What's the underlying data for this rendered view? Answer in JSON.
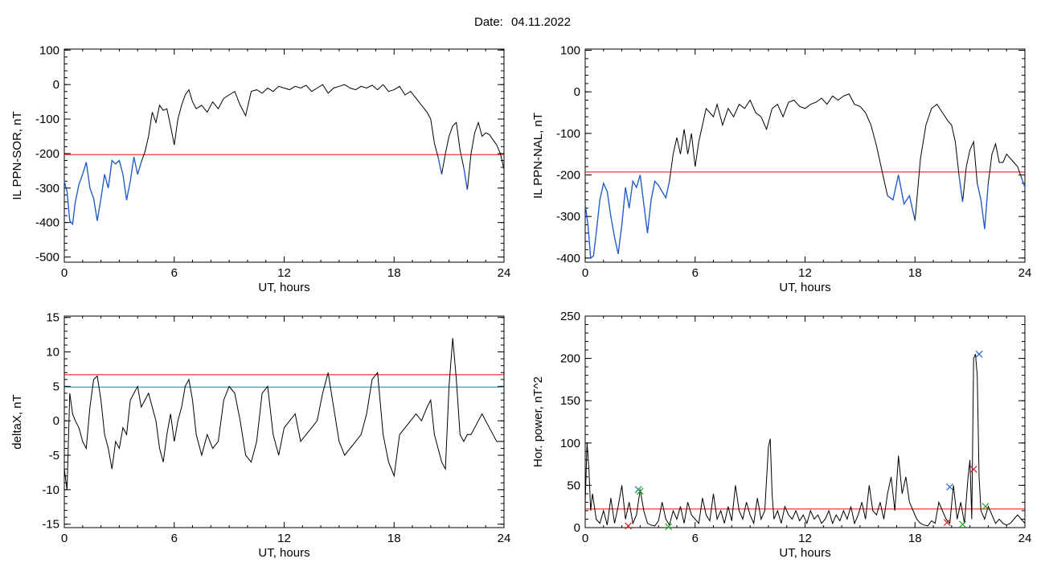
{
  "header": {
    "date_label": "Date:",
    "date_value": "04.11.2022"
  },
  "chart_data": [
    {
      "type": "line",
      "xlabel": "UT, hours",
      "ylabel": "IL PPN-SOR, nT",
      "xlim": [
        0,
        24
      ],
      "ylim": [
        -515,
        103
      ],
      "x_ticks": [
        0,
        6,
        12,
        18,
        24
      ],
      "y_ticks": [
        100,
        0,
        -100,
        -200,
        -300,
        -400,
        -500
      ],
      "threshold": {
        "value": -203,
        "color": "#ff0000"
      },
      "line_color": "#000000",
      "highlight_color": "#1f5fd0",
      "series": [
        {
          "x": [
            0,
            0.15,
            0.3,
            0.45,
            0.6,
            0.8,
            1.0,
            1.2,
            1.4,
            1.6,
            1.8,
            2.0,
            2.2,
            2.4,
            2.6,
            2.8,
            3.0,
            3.2,
            3.4,
            3.6,
            3.8,
            4.0,
            4.2,
            4.4,
            4.6,
            4.8,
            5.0,
            5.2,
            5.4,
            5.6,
            5.8,
            6.0,
            6.2,
            6.4,
            6.6,
            6.8,
            7.0,
            7.2,
            7.5,
            7.8,
            8.1,
            8.4,
            8.7,
            9.0,
            9.3,
            9.6,
            9.9,
            10.2,
            10.5,
            10.8,
            11.1,
            11.4,
            11.7,
            12.0,
            12.3,
            12.6,
            12.9,
            13.2,
            13.5,
            13.8,
            14.1,
            14.4,
            14.7,
            15.0,
            15.3,
            15.6,
            15.9,
            16.2,
            16.5,
            16.8,
            17.1,
            17.4,
            17.7,
            18.0,
            18.3,
            18.6,
            18.9,
            19.2,
            19.5,
            19.8,
            20.0,
            20.2,
            20.4,
            20.6,
            20.8,
            21.0,
            21.2,
            21.4,
            21.6,
            21.8,
            22.0,
            22.2,
            22.4,
            22.6,
            22.8,
            23.0,
            23.2,
            23.4,
            23.6,
            23.8,
            24.0
          ],
          "y": [
            -280,
            -310,
            -395,
            -405,
            -340,
            -290,
            -260,
            -225,
            -300,
            -330,
            -395,
            -330,
            -260,
            -300,
            -220,
            -230,
            -220,
            -260,
            -335,
            -280,
            -210,
            -260,
            -225,
            -195,
            -150,
            -80,
            -110,
            -60,
            -75,
            -70,
            -120,
            -175,
            -100,
            -60,
            -30,
            -15,
            -50,
            -70,
            -60,
            -80,
            -50,
            -70,
            -40,
            -30,
            -20,
            -60,
            -90,
            -20,
            -15,
            -25,
            -10,
            -20,
            -5,
            -10,
            -15,
            -5,
            -10,
            -2,
            -20,
            -10,
            0,
            -25,
            -10,
            -5,
            0,
            -10,
            -15,
            -5,
            -10,
            -2,
            -15,
            0,
            -20,
            -15,
            -5,
            -30,
            -20,
            -40,
            -60,
            -80,
            -100,
            -170,
            -210,
            -260,
            -200,
            -150,
            -120,
            -110,
            -190,
            -240,
            -305,
            -200,
            -140,
            -110,
            -150,
            -140,
            -145,
            -160,
            -175,
            -200,
            -245
          ]
        }
      ]
    },
    {
      "type": "line",
      "xlabel": "UT, hours",
      "ylabel": "IL PPN-NAL, nT",
      "xlim": [
        0,
        24
      ],
      "ylim": [
        -410,
        103
      ],
      "x_ticks": [
        0,
        6,
        12,
        18,
        24
      ],
      "y_ticks": [
        100,
        0,
        -100,
        -200,
        -300,
        -400
      ],
      "threshold": {
        "value": -193,
        "color": "#ff0000"
      },
      "line_color": "#000000",
      "highlight_color": "#1f5fd0",
      "series": [
        {
          "x": [
            0,
            0.15,
            0.3,
            0.45,
            0.6,
            0.8,
            1.0,
            1.2,
            1.4,
            1.6,
            1.8,
            2.0,
            2.2,
            2.4,
            2.6,
            2.8,
            3.0,
            3.2,
            3.4,
            3.6,
            3.8,
            4.0,
            4.2,
            4.4,
            4.6,
            4.8,
            5.0,
            5.2,
            5.4,
            5.6,
            5.8,
            6.0,
            6.2,
            6.4,
            6.6,
            6.8,
            7.0,
            7.2,
            7.5,
            7.8,
            8.1,
            8.4,
            8.7,
            9.0,
            9.3,
            9.6,
            9.9,
            10.2,
            10.5,
            10.8,
            11.1,
            11.4,
            11.7,
            12.0,
            12.3,
            12.6,
            12.9,
            13.2,
            13.5,
            13.8,
            14.1,
            14.4,
            14.7,
            15.0,
            15.3,
            15.6,
            15.9,
            16.2,
            16.5,
            16.8,
            17.1,
            17.4,
            17.7,
            18.0,
            18.3,
            18.6,
            18.9,
            19.2,
            19.5,
            19.8,
            20.0,
            20.2,
            20.4,
            20.6,
            20.8,
            21.0,
            21.2,
            21.4,
            21.6,
            21.8,
            22.0,
            22.2,
            22.4,
            22.6,
            22.8,
            23.0,
            23.2,
            23.4,
            23.6,
            23.8,
            24.0
          ],
          "y": [
            -270,
            -320,
            -400,
            -395,
            -340,
            -260,
            -220,
            -240,
            -300,
            -350,
            -390,
            -320,
            -230,
            -280,
            -215,
            -230,
            -200,
            -270,
            -340,
            -260,
            -215,
            -225,
            -240,
            -255,
            -215,
            -150,
            -110,
            -150,
            -90,
            -150,
            -100,
            -180,
            -120,
            -80,
            -40,
            -50,
            -60,
            -30,
            -80,
            -40,
            -60,
            -30,
            -40,
            -20,
            -50,
            -60,
            -90,
            -40,
            -30,
            -60,
            -25,
            -20,
            -35,
            -40,
            -30,
            -25,
            -15,
            -30,
            -10,
            -20,
            -10,
            -5,
            -30,
            -35,
            -50,
            -80,
            -130,
            -190,
            -250,
            -260,
            -200,
            -270,
            -250,
            -310,
            -160,
            -80,
            -40,
            -30,
            -50,
            -70,
            -80,
            -120,
            -200,
            -265,
            -180,
            -140,
            -120,
            -220,
            -260,
            -330,
            -220,
            -150,
            -125,
            -170,
            -170,
            -150,
            -160,
            -170,
            -180,
            -205,
            -230
          ]
        }
      ]
    },
    {
      "type": "line",
      "xlabel": "UT, hours",
      "ylabel": "deltaX, nT",
      "xlim": [
        0,
        24
      ],
      "ylim": [
        -15.5,
        15.2
      ],
      "x_ticks": [
        0,
        6,
        12,
        18,
        24
      ],
      "y_ticks": [
        15,
        10,
        5,
        0,
        -5,
        -10,
        -15
      ],
      "thresholds": [
        {
          "value": 6.7,
          "color": "#ff0000"
        },
        {
          "value": 4.9,
          "color": "#1a7f9c"
        }
      ],
      "line_color": "#000000",
      "series": [
        {
          "x": [
            0,
            0.15,
            0.3,
            0.45,
            0.6,
            0.8,
            1.0,
            1.2,
            1.4,
            1.6,
            1.8,
            2.0,
            2.2,
            2.4,
            2.6,
            2.8,
            3.0,
            3.2,
            3.4,
            3.6,
            3.8,
            4.0,
            4.2,
            4.4,
            4.6,
            4.8,
            5.0,
            5.2,
            5.4,
            5.6,
            5.8,
            6.0,
            6.2,
            6.4,
            6.6,
            6.8,
            7.0,
            7.2,
            7.5,
            7.8,
            8.1,
            8.4,
            8.7,
            9.0,
            9.3,
            9.6,
            9.9,
            10.2,
            10.5,
            10.8,
            11.1,
            11.4,
            11.7,
            12.0,
            12.3,
            12.6,
            12.9,
            13.2,
            13.5,
            13.8,
            14.1,
            14.4,
            14.7,
            15.0,
            15.3,
            15.6,
            15.9,
            16.2,
            16.5,
            16.8,
            17.1,
            17.4,
            17.7,
            18.0,
            18.3,
            18.6,
            18.9,
            19.2,
            19.5,
            19.8,
            20.0,
            20.2,
            20.4,
            20.6,
            20.8,
            21.0,
            21.2,
            21.4,
            21.6,
            21.8,
            22.0,
            22.2,
            22.4,
            22.6,
            22.8,
            23.0,
            23.2,
            23.4,
            23.6,
            23.8,
            24.0
          ],
          "y": [
            -7,
            -10,
            4,
            1,
            0,
            -1,
            -3,
            -4,
            2,
            6,
            6.5,
            3,
            -2,
            -4,
            -7,
            -3,
            -4,
            -1,
            -2,
            3,
            4,
            5,
            2,
            3,
            4,
            2,
            0,
            -4,
            -6,
            -2,
            1,
            -3,
            0,
            2,
            5,
            6,
            3,
            -2,
            -5,
            -2,
            -4,
            -3,
            3,
            5,
            4,
            0,
            -5,
            -6,
            -3,
            4,
            5,
            -2,
            -5,
            -1,
            0,
            1,
            -3,
            -2,
            -1,
            0,
            4,
            7,
            2,
            -3,
            -5,
            -4,
            -3,
            -2,
            1,
            6,
            7,
            -2,
            -6,
            -8,
            -2,
            -1,
            0,
            1,
            0,
            2,
            3,
            -2,
            -4,
            -6,
            -7,
            5,
            12,
            6,
            -2,
            -3,
            -2,
            -2,
            -1,
            0,
            1,
            0,
            -1,
            -2,
            -3,
            -3,
            -3
          ]
        }
      ]
    },
    {
      "type": "line",
      "xlabel": "UT, hours",
      "ylabel": "Hor. power, nT^2",
      "xlim": [
        0,
        24
      ],
      "ylim": [
        0,
        250
      ],
      "x_ticks": [
        0,
        6,
        12,
        18,
        24
      ],
      "y_ticks": [
        250,
        200,
        150,
        100,
        50,
        0
      ],
      "threshold": {
        "value": 22,
        "color": "#ff0000"
      },
      "line_color": "#000000",
      "series": [
        {
          "x": [
            0,
            0.1,
            0.2,
            0.3,
            0.4,
            0.6,
            0.8,
            1.0,
            1.2,
            1.4,
            1.6,
            1.8,
            2.0,
            2.2,
            2.4,
            2.6,
            2.8,
            3.0,
            3.2,
            3.4,
            3.6,
            3.8,
            4.0,
            4.2,
            4.4,
            4.6,
            4.8,
            5.0,
            5.2,
            5.4,
            5.6,
            5.8,
            6.0,
            6.2,
            6.4,
            6.6,
            6.8,
            7.0,
            7.2,
            7.4,
            7.6,
            7.8,
            8.0,
            8.2,
            8.4,
            8.6,
            8.8,
            9.0,
            9.2,
            9.4,
            9.6,
            9.8,
            10.0,
            10.1,
            10.2,
            10.3,
            10.5,
            10.7,
            10.9,
            11.1,
            11.3,
            11.5,
            11.7,
            11.9,
            12.1,
            12.3,
            12.5,
            12.7,
            12.9,
            13.1,
            13.3,
            13.5,
            13.7,
            13.9,
            14.1,
            14.3,
            14.5,
            14.7,
            14.9,
            15.1,
            15.3,
            15.5,
            15.7,
            15.9,
            16.1,
            16.3,
            16.5,
            16.7,
            16.9,
            17.1,
            17.3,
            17.5,
            17.7,
            17.9,
            18.1,
            18.3,
            18.5,
            18.7,
            18.9,
            19.1,
            19.3,
            19.5,
            19.7,
            19.9,
            20.1,
            20.3,
            20.5,
            20.7,
            20.9,
            21.0,
            21.1,
            21.2,
            21.3,
            21.4,
            21.5,
            21.6,
            21.8,
            22.0,
            22.2,
            22.4,
            22.6,
            22.8,
            23.0,
            23.2,
            23.4,
            23.6,
            23.8,
            24.0
          ],
          "y": [
            30,
            100,
            70,
            20,
            40,
            10,
            5,
            20,
            3,
            35,
            5,
            25,
            50,
            10,
            30,
            5,
            15,
            45,
            20,
            5,
            3,
            2,
            8,
            30,
            10,
            3,
            20,
            10,
            25,
            5,
            30,
            15,
            10,
            5,
            35,
            15,
            8,
            40,
            10,
            20,
            5,
            25,
            8,
            50,
            20,
            10,
            30,
            15,
            5,
            35,
            10,
            20,
            95,
            105,
            40,
            10,
            20,
            5,
            25,
            15,
            10,
            20,
            8,
            15,
            5,
            20,
            10,
            15,
            5,
            10,
            20,
            5,
            15,
            8,
            20,
            10,
            25,
            5,
            15,
            30,
            10,
            50,
            20,
            15,
            30,
            10,
            40,
            60,
            20,
            85,
            40,
            60,
            30,
            20,
            10,
            5,
            3,
            2,
            8,
            5,
            30,
            20,
            10,
            5,
            50,
            10,
            30,
            5,
            60,
            80,
            10,
            200,
            205,
            180,
            60,
            20,
            10,
            25,
            15,
            5,
            10,
            5,
            3,
            5,
            10,
            15,
            10,
            5
          ]
        }
      ],
      "markers": [
        {
          "x": 2.9,
          "y": 45,
          "color": "#1a7f9c"
        },
        {
          "x": 3.0,
          "y": 43,
          "color": "#22aa22"
        },
        {
          "x": 2.35,
          "y": 2,
          "color": "#cc2222"
        },
        {
          "x": 4.55,
          "y": 1,
          "color": "#22aa22"
        },
        {
          "x": 19.9,
          "y": 48,
          "color": "#1f5fd0"
        },
        {
          "x": 19.75,
          "y": 6,
          "color": "#cc2222"
        },
        {
          "x": 20.6,
          "y": 4,
          "color": "#22aa22"
        },
        {
          "x": 21.2,
          "y": 69,
          "color": "#cc2222"
        },
        {
          "x": 21.5,
          "y": 205,
          "color": "#1f5fd0"
        },
        {
          "x": 21.85,
          "y": 25,
          "color": "#22aa22"
        }
      ]
    }
  ]
}
